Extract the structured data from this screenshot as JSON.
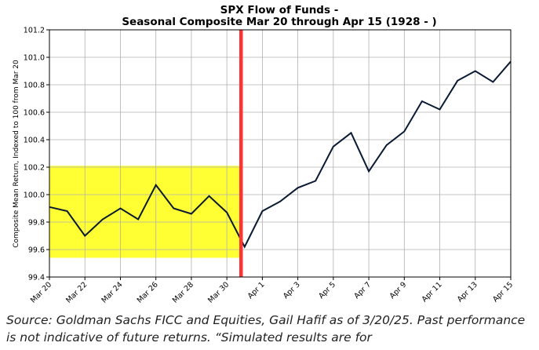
{
  "chart_data": {
    "type": "line",
    "title_line1": "SPX Flow of Funds -",
    "title_line2": "Seasonal Composite Mar 20 through Apr 15 (1928 - )",
    "ylabel": "Composite Mean Return, Indexed to 100 from Mar 20",
    "ylim": [
      99.4,
      101.2
    ],
    "yticks": [
      "99.4",
      "99.6",
      "99.8",
      "100.0",
      "100.2",
      "100.4",
      "100.6",
      "100.8",
      "101.0",
      "101.2"
    ],
    "ytick_values": [
      99.4,
      99.6,
      99.8,
      100.0,
      100.2,
      100.4,
      100.6,
      100.8,
      101.0,
      101.2
    ],
    "x_tick_labels": [
      "Mar 20",
      "Mar 22",
      "Mar 24",
      "Mar 26",
      "Mar 28",
      "Mar 30",
      "Apr 1",
      "Apr 3",
      "Apr 5",
      "Apr 7",
      "Apr 9",
      "Apr 11",
      "Apr 13",
      "Apr 15"
    ],
    "x_tick_index": [
      0,
      2,
      4,
      6,
      8,
      10,
      12,
      14,
      16,
      18,
      20,
      22,
      24,
      26
    ],
    "x_count": 27,
    "grid": true,
    "line_color": "#0a1a33",
    "values": [
      99.91,
      99.88,
      99.7,
      99.82,
      99.9,
      99.82,
      100.07,
      99.9,
      99.86,
      99.99,
      99.87,
      99.62,
      99.88,
      99.95,
      100.05,
      100.1,
      100.35,
      100.45,
      100.17,
      100.36,
      100.46,
      100.68,
      100.62,
      100.83,
      100.9,
      100.82,
      100.97
    ],
    "highlight": {
      "x_start": 0,
      "x_end": 10.8,
      "y_low": 99.54,
      "y_high": 100.21,
      "color": "#ffff33"
    },
    "vline": {
      "x": 10.8,
      "color": "#ff3333"
    }
  },
  "source_text": "Source: Goldman Sachs FICC and Equities, Gail Hafif as of 3/20/25. Past performance is not indicative of future returns. “Simulated results are for"
}
